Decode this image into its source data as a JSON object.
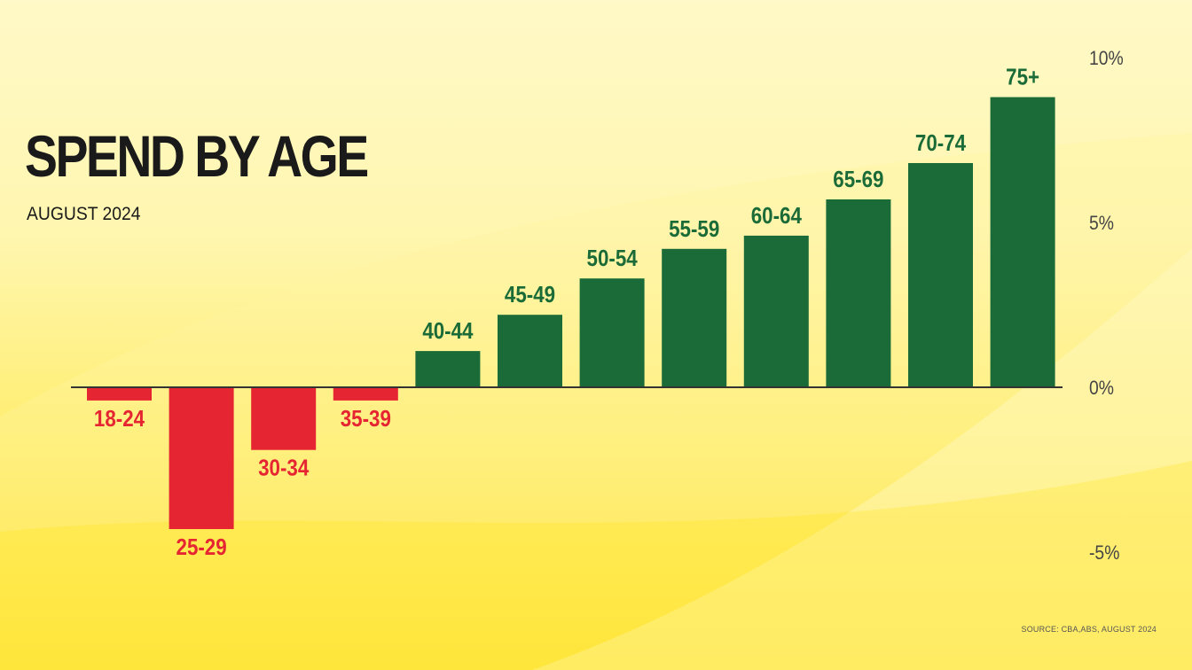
{
  "header": {
    "title": "SPEND BY AGE",
    "subtitle": "AUGUST 2024"
  },
  "footer": {
    "source": "SOURCE: CBA,ABS, AUGUST 2024"
  },
  "colors": {
    "positive": "#1a6b37",
    "negative": "#e52531",
    "axis": "#333333",
    "tick_text": "#444444"
  },
  "chart_data": {
    "type": "bar",
    "categories": [
      "18-24",
      "25-29",
      "30-34",
      "35-39",
      "40-44",
      "45-49",
      "50-54",
      "55-59",
      "60-64",
      "65-69",
      "70-74",
      "75+"
    ],
    "values": [
      -0.4,
      -4.3,
      -1.9,
      -0.4,
      1.1,
      2.2,
      3.3,
      4.2,
      4.6,
      5.7,
      6.8,
      8.8
    ],
    "ylim": [
      -5,
      10
    ],
    "yticks": [
      10,
      5,
      0,
      -5
    ],
    "ytick_labels": [
      "10%",
      "5%",
      "0%",
      "-5%"
    ],
    "title": "SPEND BY AGE",
    "subtitle": "AUGUST 2024",
    "xlabel": "",
    "ylabel": "",
    "grid": false,
    "legend": "none",
    "yaxis_position": "right",
    "labels_as_category_names": true
  }
}
